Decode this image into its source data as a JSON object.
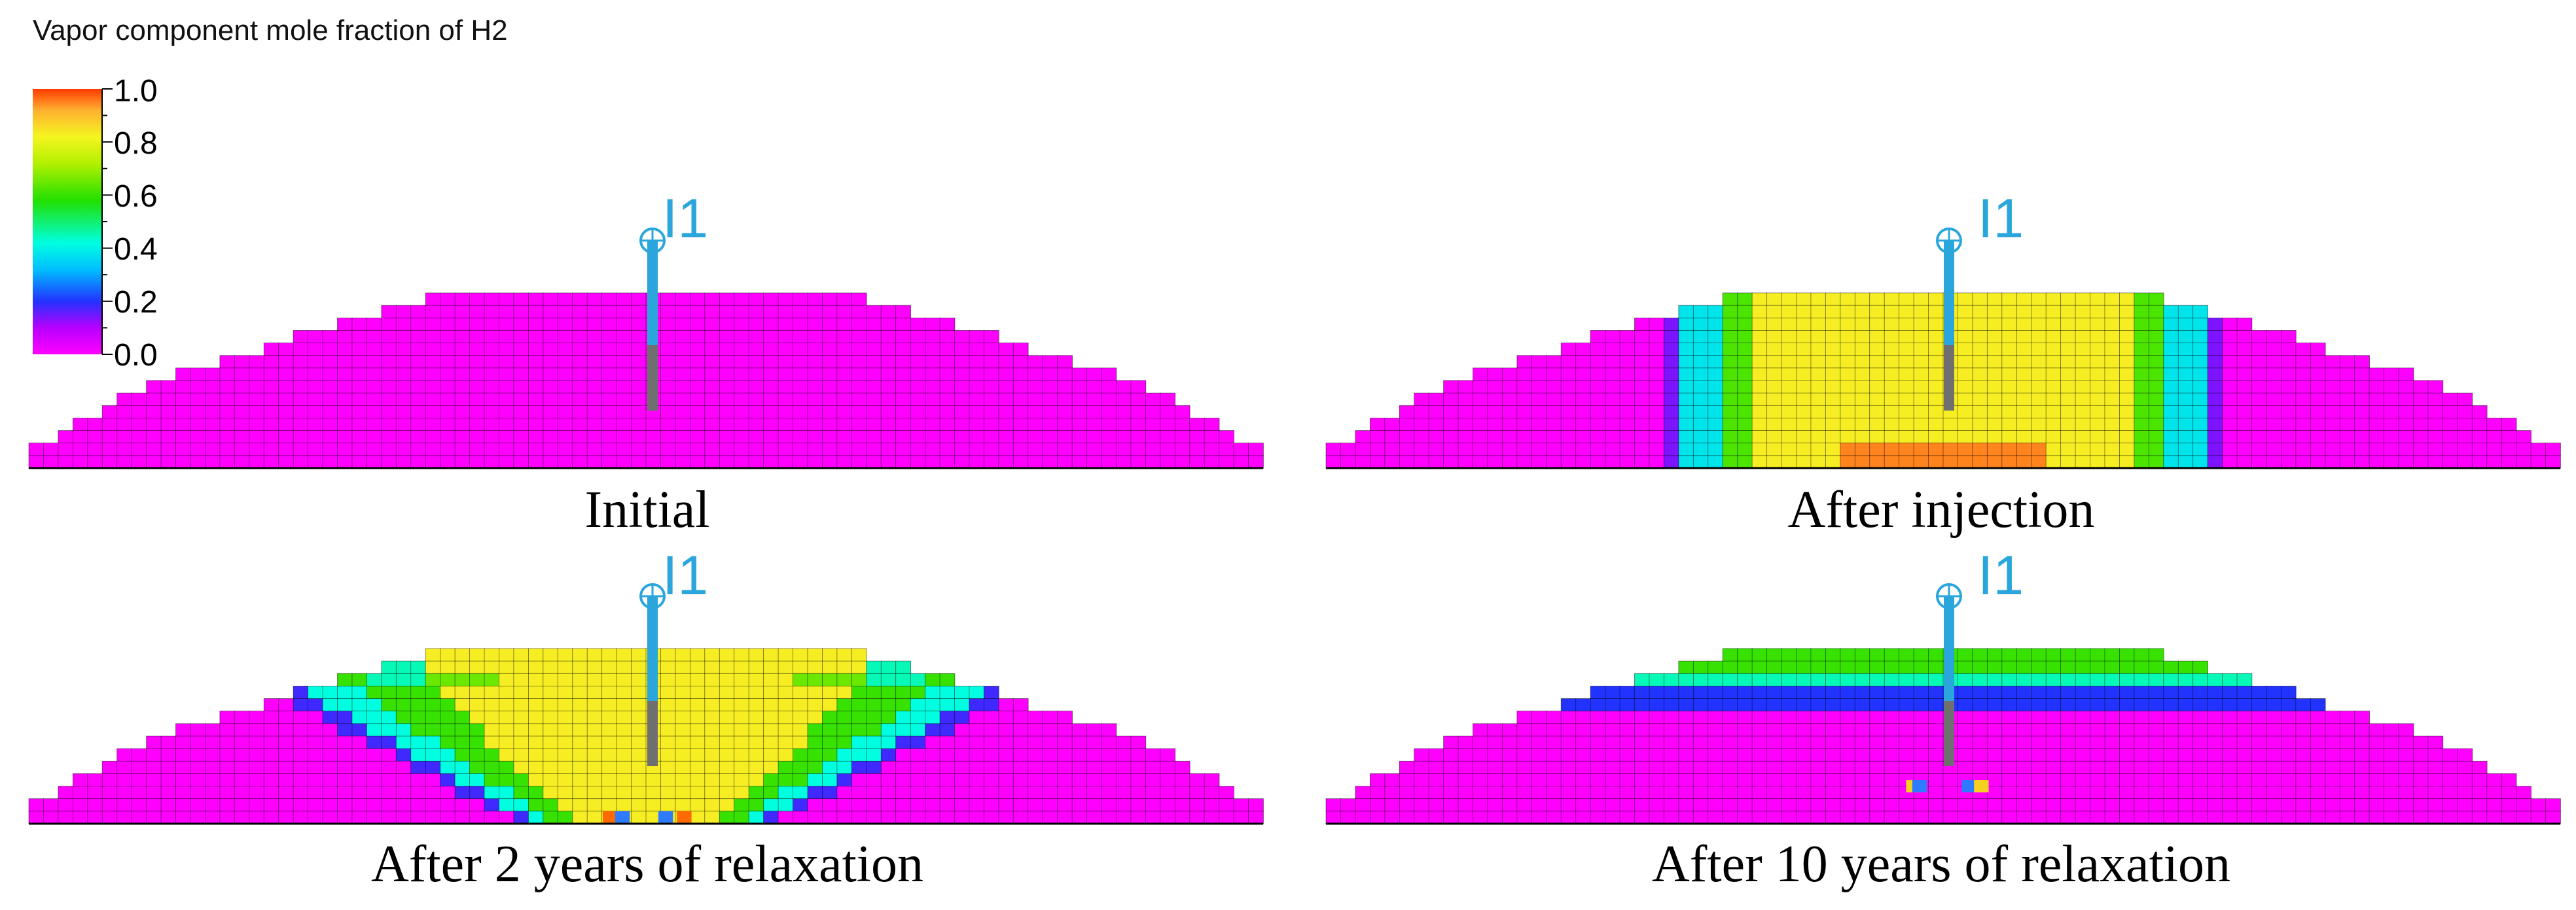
{
  "legend": {
    "title": "Vapor component mole fraction of H2",
    "ticks": [
      "1.0",
      "0.8",
      "0.6",
      "0.4",
      "0.2",
      "0.0"
    ],
    "colorscale": [
      "#ff00ff",
      "#7b00ff",
      "#2233ff",
      "#00c8ff",
      "#00ffd0",
      "#22e000",
      "#a8f000",
      "#f5f520",
      "#ffb030",
      "#ff3a00"
    ]
  },
  "well": {
    "label": "I1",
    "color": "#2aa6dc",
    "perforation_color": "#6f6f6f"
  },
  "panels": [
    {
      "caption": "Initial",
      "state": "initial"
    },
    {
      "caption": "After injection",
      "state": "injection"
    },
    {
      "caption": "After 2 years of relaxation",
      "state": "relax2"
    },
    {
      "caption": "After 10 years of relaxation",
      "state": "relax10"
    }
  ],
  "colors": {
    "background": "#ff00ff",
    "grid_line": "#000000"
  }
}
